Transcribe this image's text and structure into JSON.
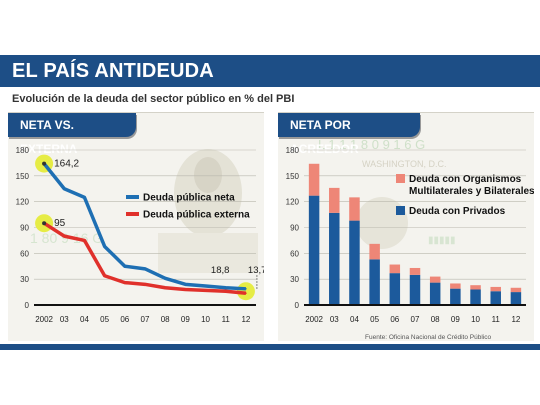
{
  "header": {
    "title": "EL PAÍS ANTIDEUDA",
    "subtitle": "Evolución de la deuda del sector público en % del PBI"
  },
  "footer": {
    "source": "Fuente: Oficina Nacional de Crédito Público"
  },
  "colors": {
    "brand_blue": "#1d4e86",
    "series_blue": "#1e6fb3",
    "series_red": "#e0302b",
    "bar_blue": "#1c5a9c",
    "bar_salmon": "#ee8677",
    "highlight": "#e6ec45"
  },
  "chart_data": [
    {
      "panel_title": "NETA VS. EXTERNA",
      "type": "line",
      "categories": [
        "2002",
        "03",
        "04",
        "05",
        "06",
        "07",
        "08",
        "09",
        "10",
        "11",
        "12"
      ],
      "ylim": [
        0,
        180
      ],
      "yticks": [
        0,
        30,
        60,
        90,
        120,
        150,
        180
      ],
      "legend_position": "center",
      "series": [
        {
          "name": "Deuda pública neta",
          "color": "#1e6fb3",
          "values": [
            164.2,
            135,
            125,
            68,
            45,
            42,
            31,
            24,
            22,
            20,
            18.8
          ]
        },
        {
          "name": "Deuda pública externa",
          "color": "#e0302b",
          "values": [
            95,
            80,
            75,
            34,
            26,
            24,
            20,
            18,
            17,
            16,
            13.7
          ]
        }
      ],
      "annotations": [
        {
          "label": "164,2",
          "category": "2002",
          "value": 164.2
        },
        {
          "label": "95",
          "category": "2002",
          "value": 95
        },
        {
          "label": "18,8",
          "category": "12",
          "value": 18.8
        },
        {
          "label": "13,7",
          "category": "12",
          "value": 13.7
        }
      ]
    },
    {
      "panel_title": "NETA POR ACREEDOR",
      "type": "bar",
      "stacked": true,
      "categories": [
        "2002",
        "03",
        "04",
        "05",
        "06",
        "07",
        "08",
        "09",
        "10",
        "11",
        "12"
      ],
      "ylim": [
        0,
        180
      ],
      "yticks": [
        0,
        30,
        60,
        90,
        120,
        150,
        180
      ],
      "legend_position": "top-right",
      "series": [
        {
          "name": "Deuda con Privados",
          "color": "#1c5a9c",
          "values": [
            127,
            107,
            98,
            53,
            37,
            35,
            26,
            19,
            18,
            16,
            15
          ]
        },
        {
          "name": "Deuda con Organismos Multilaterales y Bilaterales",
          "color": "#ee8677",
          "values": [
            37,
            29,
            27,
            18,
            10,
            8,
            7,
            6,
            5,
            5,
            5
          ]
        }
      ]
    }
  ]
}
